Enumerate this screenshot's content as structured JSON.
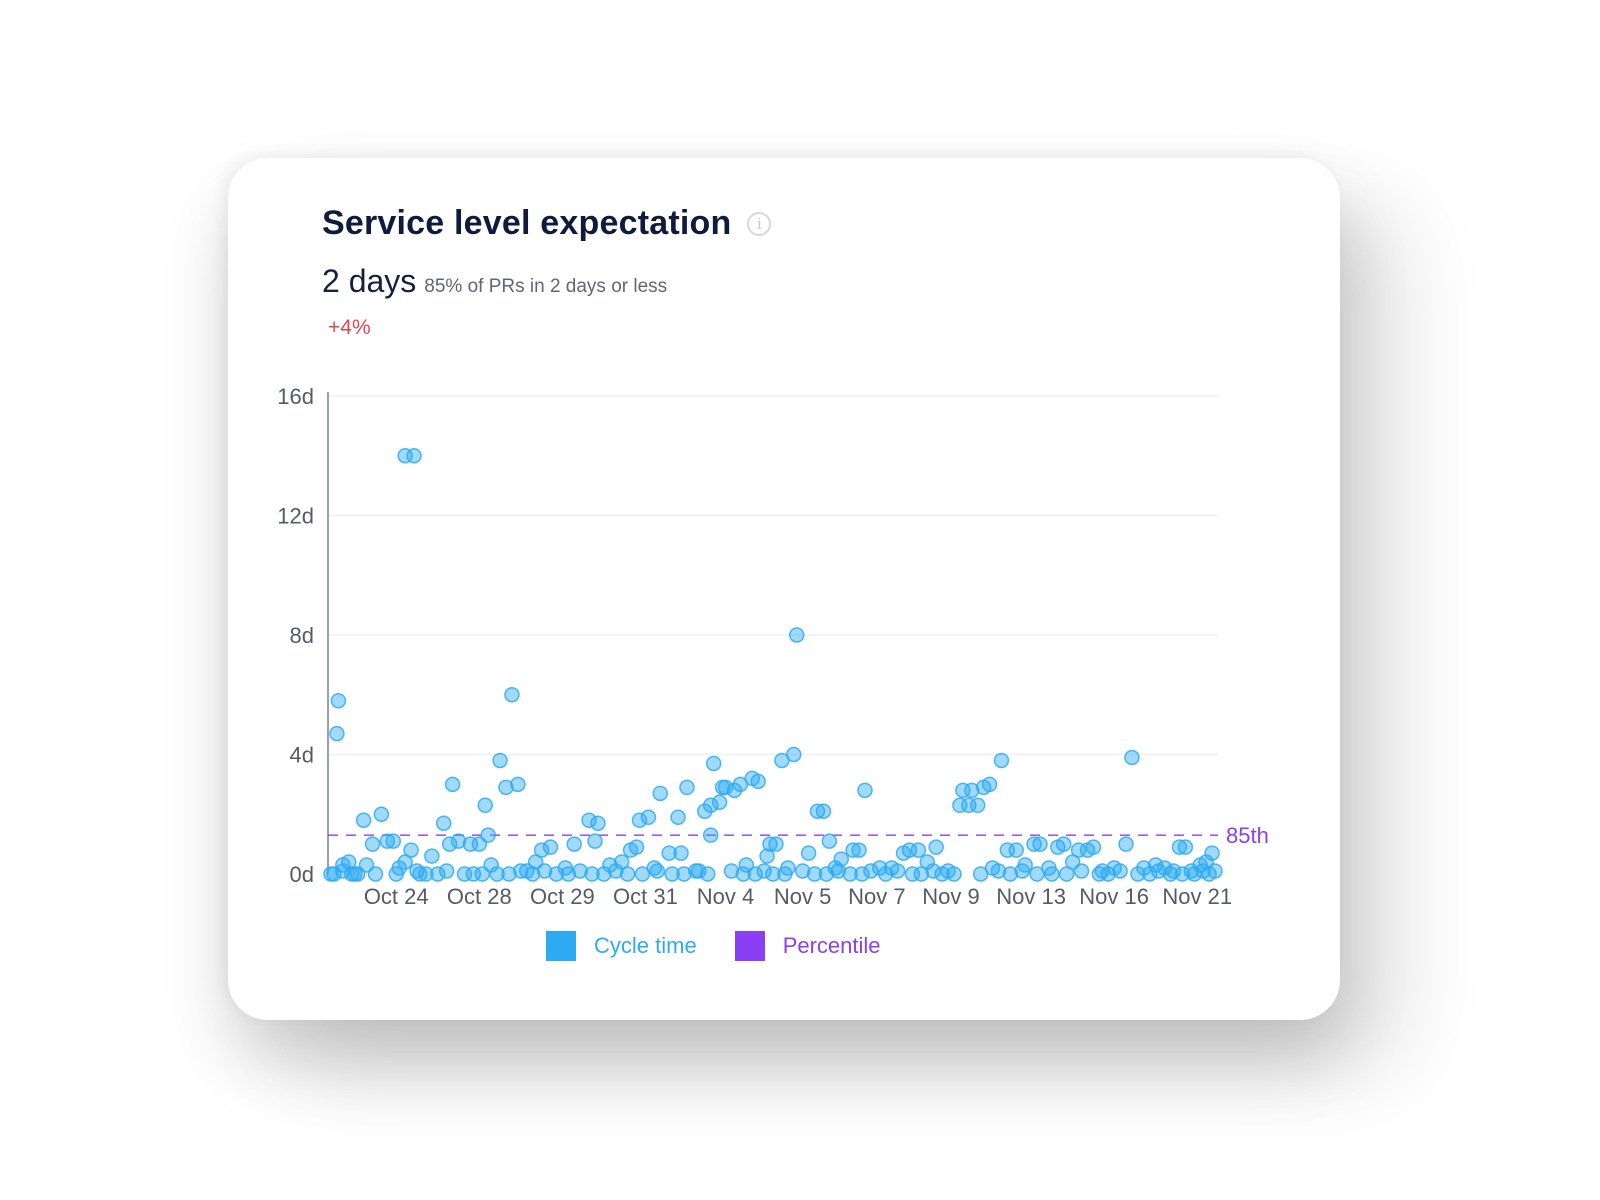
{
  "card": {
    "title": "Service level expectation",
    "info_icon": "info-icon",
    "headline_value": "2 days",
    "headline_desc": "85% of PRs in 2 days or less",
    "delta": "+4%"
  },
  "colors": {
    "cycle_time": "#2eaaf2",
    "percentile": "#8b3ff5",
    "delta": "#e0474c",
    "title": "#0f1b3d"
  },
  "chart_data": {
    "type": "scatter",
    "ylim": [
      0,
      16
    ],
    "y_unit": "d",
    "yticks": [
      0,
      4,
      8,
      12,
      16
    ],
    "ytick_labels": [
      "0d",
      "4d",
      "8d",
      "12d",
      "16d"
    ],
    "xlim": [
      0,
      30
    ],
    "x_tick_labels": [
      "Oct 24",
      "Oct 28",
      "Oct 29",
      "Oct 31",
      "Nov 4",
      "Nov 5",
      "Nov 7",
      "Nov 9",
      "Nov 13",
      "Nov 16",
      "Nov 21"
    ],
    "x_tick_positions": [
      2.3,
      5.1,
      7.9,
      10.7,
      13.4,
      16.0,
      18.5,
      21.0,
      23.7,
      26.5,
      29.3
    ],
    "grid": true,
    "legend": [
      {
        "name": "Cycle time",
        "color": "#2eaaf2"
      },
      {
        "name": "Percentile",
        "color": "#8b3ff5"
      }
    ],
    "legend_position": "bottom",
    "percentile_line": {
      "label": "85th",
      "value": 1.3
    },
    "series": [
      {
        "name": "Cycle time",
        "points": [
          [
            0.1,
            0.0
          ],
          [
            0.3,
            4.7
          ],
          [
            0.35,
            5.8
          ],
          [
            0.5,
            0.3
          ],
          [
            0.7,
            0.4
          ],
          [
            0.9,
            0.0
          ],
          [
            1.2,
            1.8
          ],
          [
            1.5,
            1.0
          ],
          [
            1.8,
            2.0
          ],
          [
            2.0,
            1.1
          ],
          [
            2.2,
            1.1
          ],
          [
            2.4,
            0.2
          ],
          [
            2.6,
            0.4
          ],
          [
            2.6,
            14.0
          ],
          [
            2.9,
            14.0
          ],
          [
            2.8,
            0.8
          ],
          [
            3.1,
            0.0
          ],
          [
            3.5,
            0.6
          ],
          [
            3.9,
            1.7
          ],
          [
            4.2,
            3.0
          ],
          [
            4.1,
            1.0
          ],
          [
            4.4,
            1.1
          ],
          [
            4.8,
            1.0
          ],
          [
            5.1,
            1.0
          ],
          [
            5.3,
            2.3
          ],
          [
            5.4,
            1.3
          ],
          [
            5.5,
            0.3
          ],
          [
            5.8,
            3.8
          ],
          [
            6.0,
            2.9
          ],
          [
            6.2,
            6.0
          ],
          [
            6.4,
            3.0
          ],
          [
            6.7,
            0.1
          ],
          [
            7.0,
            0.4
          ],
          [
            7.2,
            0.8
          ],
          [
            7.5,
            0.9
          ],
          [
            8.0,
            0.2
          ],
          [
            8.3,
            1.0
          ],
          [
            8.8,
            1.8
          ],
          [
            9.0,
            1.1
          ],
          [
            9.1,
            1.7
          ],
          [
            9.5,
            0.3
          ],
          [
            9.9,
            0.4
          ],
          [
            10.2,
            0.8
          ],
          [
            10.4,
            0.9
          ],
          [
            10.5,
            1.8
          ],
          [
            10.8,
            1.9
          ],
          [
            11.0,
            0.2
          ],
          [
            11.2,
            2.7
          ],
          [
            11.5,
            0.7
          ],
          [
            11.8,
            1.9
          ],
          [
            11.9,
            0.7
          ],
          [
            12.1,
            2.9
          ],
          [
            12.5,
            0.1
          ],
          [
            12.7,
            2.1
          ],
          [
            12.9,
            2.3
          ],
          [
            12.9,
            1.3
          ],
          [
            13.0,
            3.7
          ],
          [
            13.2,
            2.4
          ],
          [
            13.3,
            2.9
          ],
          [
            13.4,
            2.9
          ],
          [
            13.7,
            2.8
          ],
          [
            13.9,
            3.0
          ],
          [
            14.1,
            0.3
          ],
          [
            14.3,
            3.2
          ],
          [
            14.5,
            3.1
          ],
          [
            14.8,
            0.6
          ],
          [
            14.9,
            1.0
          ],
          [
            15.1,
            1.0
          ],
          [
            15.3,
            3.8
          ],
          [
            15.5,
            0.2
          ],
          [
            15.7,
            4.0
          ],
          [
            15.8,
            8.0
          ],
          [
            16.2,
            0.7
          ],
          [
            16.5,
            2.1
          ],
          [
            16.7,
            2.1
          ],
          [
            16.9,
            1.1
          ],
          [
            17.1,
            0.2
          ],
          [
            17.3,
            0.5
          ],
          [
            17.7,
            0.8
          ],
          [
            17.9,
            0.8
          ],
          [
            18.1,
            2.8
          ],
          [
            18.6,
            0.2
          ],
          [
            19.0,
            0.2
          ],
          [
            19.4,
            0.7
          ],
          [
            19.6,
            0.8
          ],
          [
            19.9,
            0.8
          ],
          [
            20.2,
            0.4
          ],
          [
            20.5,
            0.9
          ],
          [
            20.9,
            0.1
          ],
          [
            21.3,
            2.3
          ],
          [
            21.4,
            2.8
          ],
          [
            21.6,
            2.3
          ],
          [
            21.7,
            2.8
          ],
          [
            21.9,
            2.3
          ],
          [
            22.1,
            2.9
          ],
          [
            22.3,
            3.0
          ],
          [
            22.4,
            0.2
          ],
          [
            22.7,
            3.8
          ],
          [
            22.9,
            0.8
          ],
          [
            23.2,
            0.8
          ],
          [
            23.5,
            0.3
          ],
          [
            23.8,
            1.0
          ],
          [
            24.0,
            1.0
          ],
          [
            24.3,
            0.2
          ],
          [
            24.6,
            0.9
          ],
          [
            24.8,
            1.0
          ],
          [
            25.1,
            0.4
          ],
          [
            25.3,
            0.8
          ],
          [
            25.6,
            0.8
          ],
          [
            25.8,
            0.9
          ],
          [
            26.1,
            0.1
          ],
          [
            26.5,
            0.2
          ],
          [
            26.9,
            1.0
          ],
          [
            27.1,
            3.9
          ],
          [
            27.5,
            0.2
          ],
          [
            27.9,
            0.3
          ],
          [
            28.2,
            0.2
          ],
          [
            28.5,
            0.1
          ],
          [
            28.7,
            0.9
          ],
          [
            28.9,
            0.9
          ],
          [
            29.1,
            0.1
          ],
          [
            29.4,
            0.3
          ],
          [
            29.6,
            0.4
          ],
          [
            29.8,
            0.7
          ],
          [
            29.9,
            0.1
          ],
          [
            0.2,
            0.0
          ],
          [
            0.5,
            0.1
          ],
          [
            0.8,
            0.0
          ],
          [
            1.0,
            0.0
          ],
          [
            1.3,
            0.3
          ],
          [
            1.6,
            0.0
          ],
          [
            2.3,
            0.0
          ],
          [
            3.0,
            0.1
          ],
          [
            3.3,
            0.0
          ],
          [
            3.7,
            0.0
          ],
          [
            4.0,
            0.1
          ],
          [
            4.6,
            0.0
          ],
          [
            4.9,
            0.0
          ],
          [
            5.2,
            0.0
          ],
          [
            5.7,
            0.0
          ],
          [
            6.1,
            0.0
          ],
          [
            6.5,
            0.1
          ],
          [
            6.9,
            0.0
          ],
          [
            7.3,
            0.1
          ],
          [
            7.7,
            0.0
          ],
          [
            8.1,
            0.0
          ],
          [
            8.5,
            0.1
          ],
          [
            8.9,
            0.0
          ],
          [
            9.3,
            0.0
          ],
          [
            9.7,
            0.1
          ],
          [
            10.1,
            0.0
          ],
          [
            10.6,
            0.0
          ],
          [
            11.1,
            0.1
          ],
          [
            11.6,
            0.0
          ],
          [
            12.0,
            0.0
          ],
          [
            12.4,
            0.1
          ],
          [
            12.8,
            0.0
          ],
          [
            13.6,
            0.1
          ],
          [
            14.0,
            0.0
          ],
          [
            14.4,
            0.0
          ],
          [
            14.7,
            0.1
          ],
          [
            15.0,
            0.0
          ],
          [
            15.4,
            0.0
          ],
          [
            16.0,
            0.1
          ],
          [
            16.4,
            0.0
          ],
          [
            16.8,
            0.0
          ],
          [
            17.2,
            0.1
          ],
          [
            17.6,
            0.0
          ],
          [
            18.0,
            0.0
          ],
          [
            18.3,
            0.1
          ],
          [
            18.8,
            0.0
          ],
          [
            19.2,
            0.1
          ],
          [
            19.7,
            0.0
          ],
          [
            20.0,
            0.0
          ],
          [
            20.4,
            0.1
          ],
          [
            20.7,
            0.0
          ],
          [
            21.1,
            0.0
          ],
          [
            22.0,
            0.0
          ],
          [
            22.6,
            0.1
          ],
          [
            23.0,
            0.0
          ],
          [
            23.4,
            0.1
          ],
          [
            23.9,
            0.0
          ],
          [
            24.4,
            0.0
          ],
          [
            24.9,
            0.0
          ],
          [
            25.4,
            0.1
          ],
          [
            26.0,
            0.0
          ],
          [
            26.3,
            0.0
          ],
          [
            26.7,
            0.1
          ],
          [
            27.3,
            0.0
          ],
          [
            27.7,
            0.0
          ],
          [
            28.0,
            0.1
          ],
          [
            28.4,
            0.0
          ],
          [
            28.8,
            0.0
          ],
          [
            29.2,
            0.0
          ],
          [
            29.5,
            0.1
          ],
          [
            29.7,
            0.0
          ]
        ]
      }
    ]
  }
}
